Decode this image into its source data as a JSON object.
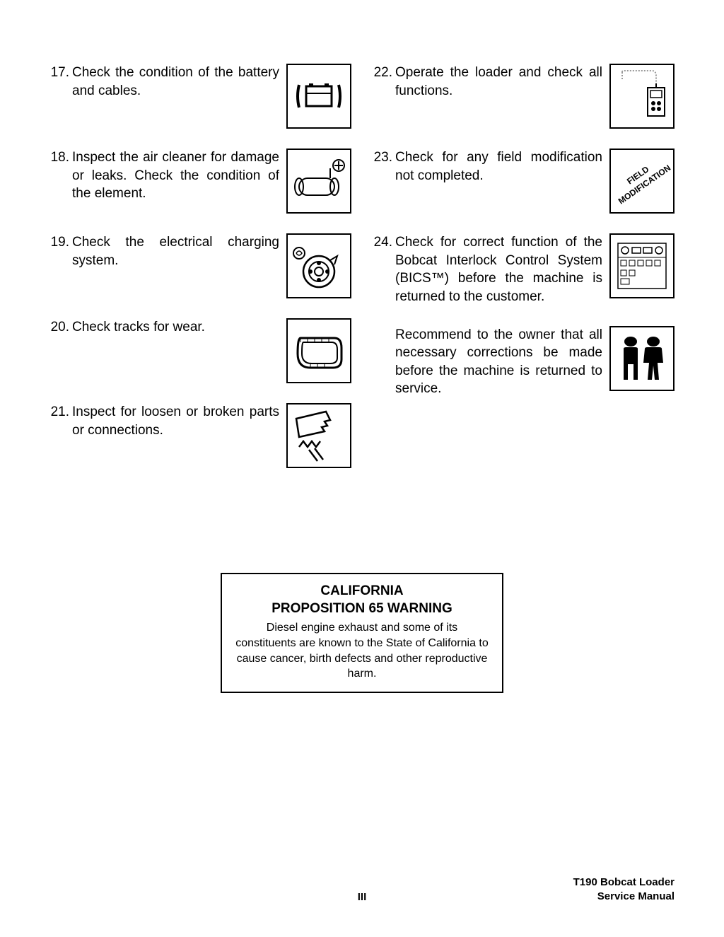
{
  "left": [
    {
      "num": "17.",
      "text": "Check the condition of the battery and cables.",
      "icon": "battery"
    },
    {
      "num": "18.",
      "text": "Inspect the air cleaner for damage or leaks. Check the condition of the element.",
      "icon": "aircleaner"
    },
    {
      "num": "19.",
      "text": "Check the electrical charging system.",
      "icon": "alternator"
    },
    {
      "num": "20.",
      "text": "Check tracks for wear.",
      "icon": "track"
    },
    {
      "num": "21.",
      "text": "Inspect for loosen or broken parts or connections.",
      "icon": "broken"
    }
  ],
  "right": [
    {
      "num": "22.",
      "text": "Operate the loader and check all functions.",
      "icon": "controller"
    },
    {
      "num": "23.",
      "text": "Check for any field modification not completed.",
      "icon": "fieldmod"
    },
    {
      "num": "24.",
      "text": "Check for correct function of the Bobcat Interlock Control System (BICS™) before the machine is returned to the customer.",
      "icon": "bics"
    },
    {
      "num": "",
      "text": "Recommend to the owner that all necessary corrections be made before the machine is returned to service.",
      "icon": "people"
    }
  ],
  "warning": {
    "title1": "CALIFORNIA",
    "title2": "PROPOSITION 65 WARNING",
    "body": "Diesel engine exhaust and some of its constituents are known to the State of California to cause cancer, birth defects and other reproductive harm."
  },
  "footer": {
    "center": "III",
    "right1": "T190 Bobcat Loader",
    "right2": "Service Manual"
  },
  "fieldmod_label1": "FIELD",
  "fieldmod_label2": "MODIFICATION"
}
